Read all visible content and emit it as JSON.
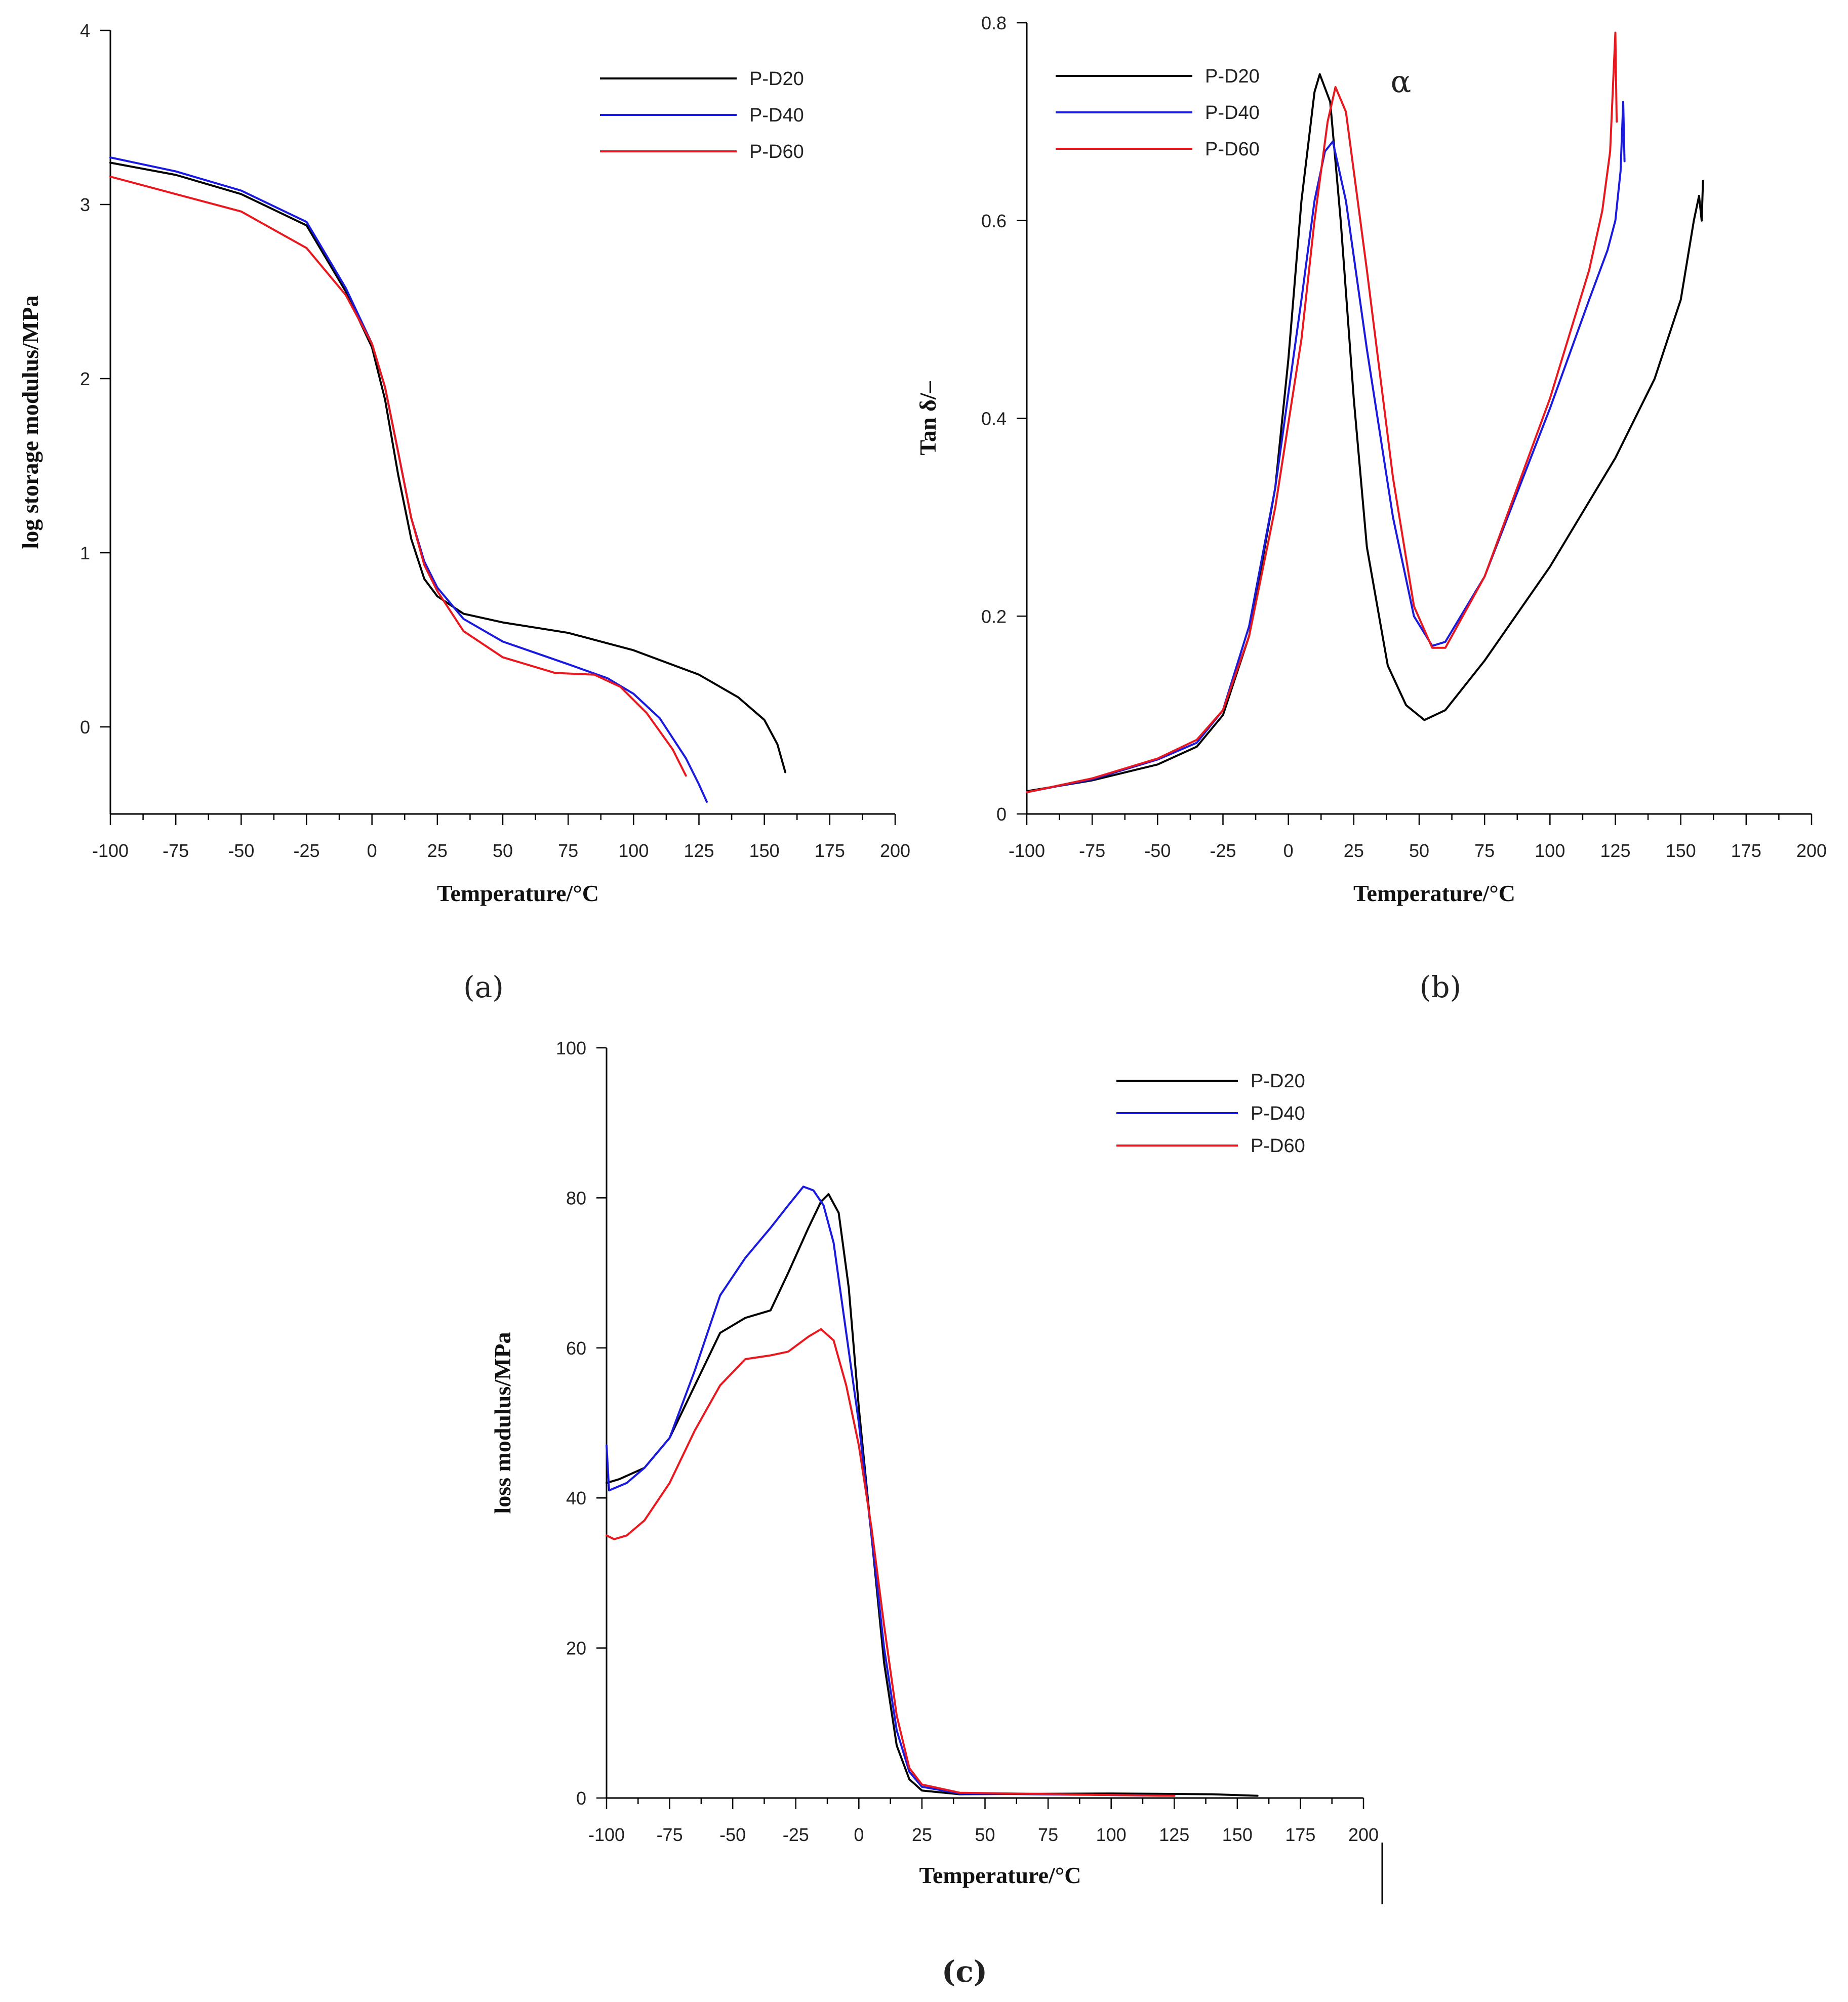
{
  "colors": {
    "P-D20": "#000000",
    "P-D40": "#1a1adf",
    "P-D60": "#e8181e"
  },
  "chart_data": [
    {
      "id": "a",
      "type": "line",
      "panel_label": "(a)",
      "title": "",
      "xlabel": "Temperature/°C",
      "ylabel": "log storage modulus/MPa",
      "xlim": [
        -100,
        200
      ],
      "ylim": [
        -0.5,
        4
      ],
      "xticks": [
        -100,
        -75,
        -50,
        -25,
        0,
        25,
        50,
        75,
        100,
        125,
        150,
        175,
        200
      ],
      "yticks": [
        0,
        1,
        2,
        3,
        4
      ],
      "xtick_labels": [
        "-100",
        "-75",
        "-50",
        "-25",
        "0",
        "25",
        "50",
        "75",
        "100",
        "125",
        "150",
        "175",
        "200"
      ],
      "ytick_labels": [
        "0",
        "1",
        "2",
        "3",
        "4"
      ],
      "legend": [
        "P-D20",
        "P-D40",
        "P-D60"
      ],
      "legend_position": "top-right",
      "annotations": [],
      "series": [
        {
          "name": "P-D20",
          "points": [
            [
              -100,
              3.24
            ],
            [
              -75,
              3.17
            ],
            [
              -50,
              3.06
            ],
            [
              -25,
              2.88
            ],
            [
              -10,
              2.5
            ],
            [
              0,
              2.18
            ],
            [
              5,
              1.88
            ],
            [
              10,
              1.45
            ],
            [
              15,
              1.08
            ],
            [
              20,
              0.85
            ],
            [
              25,
              0.75
            ],
            [
              35,
              0.65
            ],
            [
              50,
              0.6
            ],
            [
              75,
              0.54
            ],
            [
              100,
              0.44
            ],
            [
              125,
              0.3
            ],
            [
              140,
              0.17
            ],
            [
              150,
              0.04
            ],
            [
              155,
              -0.1
            ],
            [
              158,
              -0.26
            ]
          ]
        },
        {
          "name": "P-D40",
          "points": [
            [
              -100,
              3.27
            ],
            [
              -75,
              3.19
            ],
            [
              -50,
              3.08
            ],
            [
              -25,
              2.9
            ],
            [
              -10,
              2.52
            ],
            [
              0,
              2.2
            ],
            [
              5,
              1.95
            ],
            [
              10,
              1.58
            ],
            [
              15,
              1.2
            ],
            [
              20,
              0.95
            ],
            [
              25,
              0.8
            ],
            [
              35,
              0.62
            ],
            [
              50,
              0.49
            ],
            [
              75,
              0.36
            ],
            [
              90,
              0.28
            ],
            [
              100,
              0.19
            ],
            [
              110,
              0.05
            ],
            [
              120,
              -0.18
            ],
            [
              125,
              -0.33
            ],
            [
              128,
              -0.43
            ]
          ]
        },
        {
          "name": "P-D60",
          "points": [
            [
              -100,
              3.16
            ],
            [
              -75,
              3.06
            ],
            [
              -50,
              2.96
            ],
            [
              -25,
              2.75
            ],
            [
              -10,
              2.48
            ],
            [
              0,
              2.2
            ],
            [
              5,
              1.95
            ],
            [
              10,
              1.58
            ],
            [
              15,
              1.2
            ],
            [
              20,
              0.93
            ],
            [
              25,
              0.78
            ],
            [
              35,
              0.55
            ],
            [
              50,
              0.4
            ],
            [
              70,
              0.31
            ],
            [
              85,
              0.3
            ],
            [
              95,
              0.23
            ],
            [
              105,
              0.08
            ],
            [
              115,
              -0.13
            ],
            [
              120,
              -0.28
            ]
          ]
        }
      ]
    },
    {
      "id": "b",
      "type": "line",
      "panel_label": "(b)",
      "title": "",
      "xlabel": "Temperature/°C",
      "ylabel": "Tan δ/–",
      "xlim": [
        -100,
        200
      ],
      "ylim": [
        0,
        0.8
      ],
      "xticks": [
        -100,
        -75,
        -50,
        -25,
        0,
        25,
        50,
        75,
        100,
        125,
        150,
        175,
        200
      ],
      "yticks": [
        0,
        0.2,
        0.4,
        0.6,
        0.8
      ],
      "xtick_labels": [
        "-100",
        "-75",
        "-50",
        "-25",
        "0",
        "25",
        "50",
        "75",
        "100",
        "125",
        "150",
        "175",
        "200"
      ],
      "ytick_labels": [
        "0",
        "0.2",
        "0.4",
        "0.6",
        "0.8"
      ],
      "legend": [
        "P-D20",
        "P-D40",
        "P-D60"
      ],
      "legend_position": "top-left",
      "annotations": [
        {
          "text": "α",
          "x": 43,
          "y": 0.73
        }
      ],
      "series": [
        {
          "name": "P-D20",
          "points": [
            [
              -100,
              0.023
            ],
            [
              -75,
              0.034
            ],
            [
              -50,
              0.05
            ],
            [
              -35,
              0.068
            ],
            [
              -25,
              0.1
            ],
            [
              -15,
              0.18
            ],
            [
              -5,
              0.33
            ],
            [
              0,
              0.46
            ],
            [
              5,
              0.62
            ],
            [
              10,
              0.73
            ],
            [
              12,
              0.748
            ],
            [
              16,
              0.72
            ],
            [
              20,
              0.6
            ],
            [
              25,
              0.42
            ],
            [
              30,
              0.27
            ],
            [
              38,
              0.15
            ],
            [
              45,
              0.11
            ],
            [
              52,
              0.095
            ],
            [
              60,
              0.105
            ],
            [
              75,
              0.155
            ],
            [
              100,
              0.25
            ],
            [
              125,
              0.36
            ],
            [
              140,
              0.44
            ],
            [
              150,
              0.52
            ],
            [
              155,
              0.6
            ],
            [
              157,
              0.625
            ],
            [
              158,
              0.6
            ],
            [
              158.5,
              0.64
            ]
          ]
        },
        {
          "name": "P-D40",
          "points": [
            [
              -100,
              0.022
            ],
            [
              -75,
              0.035
            ],
            [
              -50,
              0.055
            ],
            [
              -35,
              0.072
            ],
            [
              -25,
              0.105
            ],
            [
              -15,
              0.19
            ],
            [
              -5,
              0.33
            ],
            [
              5,
              0.52
            ],
            [
              10,
              0.62
            ],
            [
              14,
              0.67
            ],
            [
              17,
              0.68
            ],
            [
              22,
              0.62
            ],
            [
              30,
              0.47
            ],
            [
              40,
              0.3
            ],
            [
              48,
              0.2
            ],
            [
              55,
              0.17
            ],
            [
              60,
              0.174
            ],
            [
              75,
              0.24
            ],
            [
              100,
              0.41
            ],
            [
              115,
              0.52
            ],
            [
              122,
              0.57
            ],
            [
              125,
              0.6
            ],
            [
              127,
              0.65
            ],
            [
              128,
              0.72
            ],
            [
              128.5,
              0.66
            ]
          ]
        },
        {
          "name": "P-D60",
          "points": [
            [
              -100,
              0.022
            ],
            [
              -75,
              0.036
            ],
            [
              -50,
              0.056
            ],
            [
              -35,
              0.075
            ],
            [
              -25,
              0.105
            ],
            [
              -15,
              0.18
            ],
            [
              -5,
              0.31
            ],
            [
              5,
              0.48
            ],
            [
              10,
              0.6
            ],
            [
              15,
              0.7
            ],
            [
              18,
              0.735
            ],
            [
              22,
              0.71
            ],
            [
              30,
              0.55
            ],
            [
              40,
              0.34
            ],
            [
              48,
              0.21
            ],
            [
              55,
              0.168
            ],
            [
              60,
              0.168
            ],
            [
              75,
              0.24
            ],
            [
              100,
              0.42
            ],
            [
              115,
              0.55
            ],
            [
              120,
              0.61
            ],
            [
              123,
              0.67
            ],
            [
              124,
              0.73
            ],
            [
              125,
              0.79
            ],
            [
              125.5,
              0.7
            ]
          ]
        }
      ]
    },
    {
      "id": "c",
      "type": "line",
      "panel_label": "(c)",
      "title": "",
      "xlabel": "Temperature/°C",
      "ylabel": "loss modulus/MPa",
      "xlim": [
        -100,
        200
      ],
      "ylim": [
        0,
        100
      ],
      "xticks": [
        -100,
        -75,
        -50,
        -25,
        0,
        25,
        50,
        75,
        100,
        125,
        150,
        175,
        200
      ],
      "yticks": [
        0,
        20,
        40,
        60,
        80,
        100
      ],
      "xtick_labels": [
        "-100",
        "-75",
        "-50",
        "-25",
        "0",
        "25",
        "50",
        "75",
        "100",
        "125",
        "150",
        "175",
        "200"
      ],
      "ytick_labels": [
        "0",
        "20",
        "40",
        "60",
        "80",
        "100"
      ],
      "legend": [
        "P-D20",
        "P-D40",
        "P-D60"
      ],
      "legend_position": "top-right",
      "annotations": [],
      "series": [
        {
          "name": "P-D20",
          "points": [
            [
              -100,
              42
            ],
            [
              -95,
              42.5
            ],
            [
              -85,
              44
            ],
            [
              -75,
              48
            ],
            [
              -65,
              55
            ],
            [
              -55,
              62
            ],
            [
              -45,
              64
            ],
            [
              -35,
              65
            ],
            [
              -28,
              70
            ],
            [
              -20,
              76
            ],
            [
              -15,
              79.5
            ],
            [
              -12,
              80.5
            ],
            [
              -8,
              78
            ],
            [
              -4,
              68
            ],
            [
              0,
              52
            ],
            [
              5,
              35
            ],
            [
              10,
              18
            ],
            [
              15,
              7
            ],
            [
              20,
              2.5
            ],
            [
              25,
              1
            ],
            [
              40,
              0.5
            ],
            [
              100,
              0.6
            ],
            [
              140,
              0.5
            ],
            [
              158,
              0.3
            ]
          ]
        },
        {
          "name": "P-D40",
          "points": [
            [
              -100,
              47
            ],
            [
              -99,
              41
            ],
            [
              -92,
              42
            ],
            [
              -85,
              44
            ],
            [
              -75,
              48
            ],
            [
              -65,
              57
            ],
            [
              -55,
              67
            ],
            [
              -45,
              72
            ],
            [
              -35,
              76
            ],
            [
              -28,
              79
            ],
            [
              -22,
              81.5
            ],
            [
              -18,
              81
            ],
            [
              -14,
              79
            ],
            [
              -10,
              74
            ],
            [
              -5,
              62
            ],
            [
              0,
              50
            ],
            [
              5,
              35
            ],
            [
              10,
              20
            ],
            [
              15,
              9
            ],
            [
              20,
              3.5
            ],
            [
              25,
              1.5
            ],
            [
              40,
              0.6
            ],
            [
              100,
              0.4
            ],
            [
              125,
              0.3
            ]
          ]
        },
        {
          "name": "P-D60",
          "points": [
            [
              -100,
              35
            ],
            [
              -97,
              34.5
            ],
            [
              -92,
              35
            ],
            [
              -85,
              37
            ],
            [
              -75,
              42
            ],
            [
              -65,
              49
            ],
            [
              -55,
              55
            ],
            [
              -45,
              58.5
            ],
            [
              -35,
              59
            ],
            [
              -28,
              59.5
            ],
            [
              -20,
              61.5
            ],
            [
              -15,
              62.5
            ],
            [
              -10,
              61
            ],
            [
              -5,
              55
            ],
            [
              0,
              47
            ],
            [
              5,
              36
            ],
            [
              10,
              23
            ],
            [
              15,
              11
            ],
            [
              20,
              4
            ],
            [
              25,
              1.8
            ],
            [
              40,
              0.7
            ],
            [
              100,
              0.4
            ],
            [
              125,
              0.3
            ]
          ]
        }
      ]
    }
  ]
}
